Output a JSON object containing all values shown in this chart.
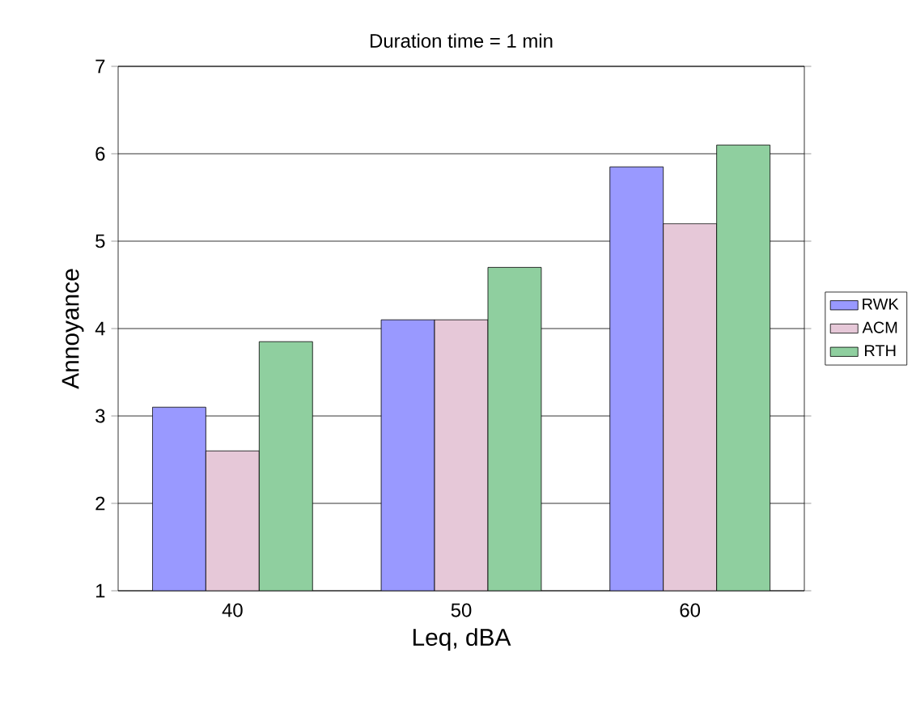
{
  "chart_data": {
    "type": "bar",
    "title": "Duration time = 1 min",
    "xlabel": "Leq, dBA",
    "ylabel": "Annoyance",
    "categories": [
      "40",
      "50",
      "60"
    ],
    "series": [
      {
        "name": "RWK",
        "color": "#9999ff",
        "values": [
          3.1,
          4.1,
          5.85
        ]
      },
      {
        "name": "ACM",
        "color": "#e6c8d8",
        "values": [
          2.6,
          4.1,
          5.2
        ]
      },
      {
        "name": "RTH",
        "color": "#8fcf9f",
        "values": [
          3.85,
          4.7,
          6.1
        ]
      }
    ],
    "ylim": [
      1,
      7
    ],
    "yticks": [
      1,
      2,
      3,
      4,
      5,
      6,
      7
    ],
    "grid": "y",
    "legend": "right"
  }
}
